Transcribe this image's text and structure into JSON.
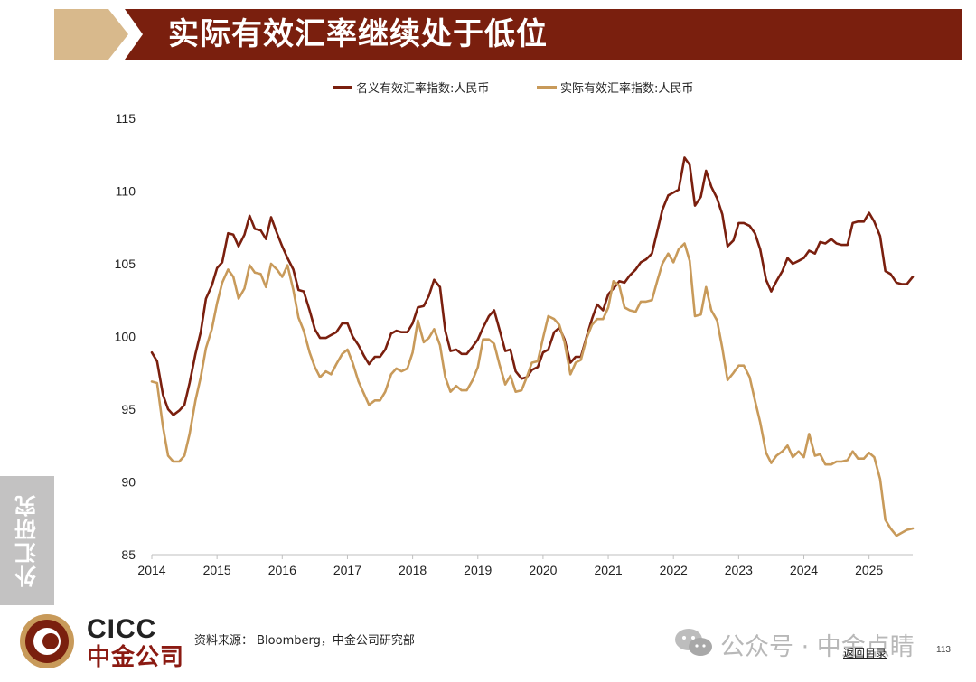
{
  "header": {
    "title": "实际有效汇率继续处于低位"
  },
  "colors": {
    "banner": "#7a1f0e",
    "chevron": "#d8b98c",
    "nominal": "#7a1f0e",
    "real": "#c89a5a"
  },
  "side_tab": {
    "label": "外汇研究"
  },
  "footer": {
    "logo_en": "CICC",
    "logo_cn": "中金公司",
    "source": "资料来源： Bloomberg，中金公司研究部",
    "watermark": "公众号 · 中金点睛",
    "back_link": "返回目录",
    "page_number": "113"
  },
  "chart_data": {
    "type": "line",
    "title": "",
    "xlabel": "",
    "ylabel": "",
    "ylim": [
      85,
      115
    ],
    "xlim": [
      2014.0,
      2025.67
    ],
    "yticks": [
      "85",
      "90",
      "95",
      "100",
      "105",
      "110",
      "115"
    ],
    "xticks": [
      "2014",
      "2015",
      "2016",
      "2017",
      "2018",
      "2019",
      "2020",
      "2021",
      "2022",
      "2023",
      "2024",
      "2025"
    ],
    "legend_position": "top",
    "series": [
      {
        "name": "名义有效汇率指数:人民币",
        "points": [
          [
            2014.0,
            98.9
          ],
          [
            2014.08,
            98.3
          ],
          [
            2014.17,
            96.0
          ],
          [
            2014.25,
            95.0
          ],
          [
            2014.33,
            94.6
          ],
          [
            2014.42,
            94.9
          ],
          [
            2014.5,
            95.3
          ],
          [
            2014.58,
            96.8
          ],
          [
            2014.67,
            98.8
          ],
          [
            2014.75,
            100.3
          ],
          [
            2014.83,
            102.6
          ],
          [
            2014.92,
            103.5
          ],
          [
            2015.0,
            104.7
          ],
          [
            2015.08,
            105.1
          ],
          [
            2015.17,
            107.1
          ],
          [
            2015.25,
            107.0
          ],
          [
            2015.33,
            106.2
          ],
          [
            2015.42,
            107.0
          ],
          [
            2015.5,
            108.3
          ],
          [
            2015.58,
            107.4
          ],
          [
            2015.67,
            107.3
          ],
          [
            2015.75,
            106.7
          ],
          [
            2015.83,
            108.2
          ],
          [
            2015.92,
            107.1
          ],
          [
            2016.0,
            106.2
          ],
          [
            2016.08,
            105.4
          ],
          [
            2016.17,
            104.6
          ],
          [
            2016.25,
            103.2
          ],
          [
            2016.33,
            103.1
          ],
          [
            2016.42,
            101.8
          ],
          [
            2016.5,
            100.5
          ],
          [
            2016.58,
            99.9
          ],
          [
            2016.67,
            99.9
          ],
          [
            2016.75,
            100.1
          ],
          [
            2016.83,
            100.3
          ],
          [
            2016.92,
            100.9
          ],
          [
            2017.0,
            100.9
          ],
          [
            2017.08,
            100.0
          ],
          [
            2017.17,
            99.4
          ],
          [
            2017.25,
            98.7
          ],
          [
            2017.33,
            98.1
          ],
          [
            2017.42,
            98.6
          ],
          [
            2017.5,
            98.6
          ],
          [
            2017.58,
            99.1
          ],
          [
            2017.67,
            100.2
          ],
          [
            2017.75,
            100.4
          ],
          [
            2017.83,
            100.3
          ],
          [
            2017.92,
            100.3
          ],
          [
            2018.0,
            100.9
          ],
          [
            2018.08,
            102.0
          ],
          [
            2018.17,
            102.1
          ],
          [
            2018.25,
            102.8
          ],
          [
            2018.33,
            103.9
          ],
          [
            2018.42,
            103.4
          ],
          [
            2018.5,
            100.4
          ],
          [
            2018.58,
            99.0
          ],
          [
            2018.67,
            99.1
          ],
          [
            2018.75,
            98.8
          ],
          [
            2018.83,
            98.8
          ],
          [
            2018.92,
            99.3
          ],
          [
            2019.0,
            99.8
          ],
          [
            2019.08,
            100.6
          ],
          [
            2019.17,
            101.4
          ],
          [
            2019.25,
            101.8
          ],
          [
            2019.33,
            100.5
          ],
          [
            2019.42,
            99.0
          ],
          [
            2019.5,
            99.1
          ],
          [
            2019.58,
            97.6
          ],
          [
            2019.67,
            97.1
          ],
          [
            2019.75,
            97.2
          ],
          [
            2019.83,
            97.7
          ],
          [
            2019.92,
            97.9
          ],
          [
            2020.0,
            98.9
          ],
          [
            2020.08,
            99.1
          ],
          [
            2020.17,
            100.3
          ],
          [
            2020.25,
            100.6
          ],
          [
            2020.33,
            99.8
          ],
          [
            2020.42,
            98.2
          ],
          [
            2020.5,
            98.6
          ],
          [
            2020.58,
            98.6
          ],
          [
            2020.67,
            100.0
          ],
          [
            2020.75,
            101.2
          ],
          [
            2020.83,
            102.2
          ],
          [
            2020.92,
            101.8
          ],
          [
            2021.0,
            102.9
          ],
          [
            2021.08,
            103.3
          ],
          [
            2021.17,
            103.8
          ],
          [
            2021.25,
            103.7
          ],
          [
            2021.33,
            104.2
          ],
          [
            2021.42,
            104.6
          ],
          [
            2021.5,
            105.1
          ],
          [
            2021.58,
            105.3
          ],
          [
            2021.67,
            105.7
          ],
          [
            2021.75,
            107.2
          ],
          [
            2021.83,
            108.7
          ],
          [
            2021.92,
            109.7
          ],
          [
            2022.0,
            109.9
          ],
          [
            2022.08,
            110.1
          ],
          [
            2022.17,
            112.3
          ],
          [
            2022.25,
            111.8
          ],
          [
            2022.33,
            109.0
          ],
          [
            2022.42,
            109.6
          ],
          [
            2022.5,
            111.4
          ],
          [
            2022.58,
            110.3
          ],
          [
            2022.67,
            109.5
          ],
          [
            2022.75,
            108.4
          ],
          [
            2022.83,
            106.2
          ],
          [
            2022.92,
            106.6
          ],
          [
            2023.0,
            107.8
          ],
          [
            2023.08,
            107.8
          ],
          [
            2023.17,
            107.6
          ],
          [
            2023.25,
            107.1
          ],
          [
            2023.33,
            106.0
          ],
          [
            2023.42,
            103.9
          ],
          [
            2023.5,
            103.1
          ],
          [
            2023.58,
            103.8
          ],
          [
            2023.67,
            104.5
          ],
          [
            2023.75,
            105.4
          ],
          [
            2023.83,
            105.0
          ],
          [
            2023.92,
            105.2
          ],
          [
            2024.0,
            105.4
          ],
          [
            2024.08,
            105.9
          ],
          [
            2024.17,
            105.7
          ],
          [
            2024.25,
            106.5
          ],
          [
            2024.33,
            106.4
          ],
          [
            2024.42,
            106.7
          ],
          [
            2024.5,
            106.4
          ],
          [
            2024.58,
            106.3
          ],
          [
            2024.67,
            106.3
          ],
          [
            2024.75,
            107.8
          ],
          [
            2024.83,
            107.9
          ],
          [
            2024.92,
            107.9
          ],
          [
            2025.0,
            108.5
          ],
          [
            2025.08,
            107.9
          ],
          [
            2025.17,
            106.9
          ],
          [
            2025.25,
            104.5
          ],
          [
            2025.33,
            104.3
          ],
          [
            2025.42,
            103.7
          ],
          [
            2025.5,
            103.6
          ],
          [
            2025.58,
            103.6
          ],
          [
            2025.67,
            104.1
          ]
        ]
      },
      {
        "name": "实际有效汇率指数:人民币",
        "points": [
          [
            2014.0,
            96.9
          ],
          [
            2014.08,
            96.8
          ],
          [
            2014.17,
            93.8
          ],
          [
            2014.25,
            91.8
          ],
          [
            2014.33,
            91.4
          ],
          [
            2014.42,
            91.4
          ],
          [
            2014.5,
            91.8
          ],
          [
            2014.58,
            93.3
          ],
          [
            2014.67,
            95.6
          ],
          [
            2014.75,
            97.2
          ],
          [
            2014.83,
            99.2
          ],
          [
            2014.92,
            100.5
          ],
          [
            2015.0,
            102.3
          ],
          [
            2015.08,
            103.7
          ],
          [
            2015.17,
            104.6
          ],
          [
            2015.25,
            104.1
          ],
          [
            2015.33,
            102.6
          ],
          [
            2015.42,
            103.3
          ],
          [
            2015.5,
            104.9
          ],
          [
            2015.58,
            104.4
          ],
          [
            2015.67,
            104.3
          ],
          [
            2015.75,
            103.4
          ],
          [
            2015.83,
            105.0
          ],
          [
            2015.92,
            104.6
          ],
          [
            2016.0,
            104.1
          ],
          [
            2016.08,
            104.9
          ],
          [
            2016.17,
            103.2
          ],
          [
            2016.25,
            101.3
          ],
          [
            2016.33,
            100.4
          ],
          [
            2016.42,
            98.9
          ],
          [
            2016.5,
            97.9
          ],
          [
            2016.58,
            97.2
          ],
          [
            2016.67,
            97.6
          ],
          [
            2016.75,
            97.4
          ],
          [
            2016.83,
            98.1
          ],
          [
            2016.92,
            98.8
          ],
          [
            2017.0,
            99.1
          ],
          [
            2017.08,
            98.2
          ],
          [
            2017.17,
            96.9
          ],
          [
            2017.25,
            96.1
          ],
          [
            2017.33,
            95.3
          ],
          [
            2017.42,
            95.6
          ],
          [
            2017.5,
            95.6
          ],
          [
            2017.58,
            96.2
          ],
          [
            2017.67,
            97.4
          ],
          [
            2017.75,
            97.8
          ],
          [
            2017.83,
            97.6
          ],
          [
            2017.92,
            97.8
          ],
          [
            2018.0,
            98.9
          ],
          [
            2018.08,
            101.1
          ],
          [
            2018.17,
            99.6
          ],
          [
            2018.25,
            99.9
          ],
          [
            2018.33,
            100.5
          ],
          [
            2018.42,
            99.4
          ],
          [
            2018.5,
            97.2
          ],
          [
            2018.58,
            96.2
          ],
          [
            2018.67,
            96.6
          ],
          [
            2018.75,
            96.3
          ],
          [
            2018.83,
            96.3
          ],
          [
            2018.92,
            97.0
          ],
          [
            2019.0,
            97.9
          ],
          [
            2019.08,
            99.8
          ],
          [
            2019.17,
            99.8
          ],
          [
            2019.25,
            99.5
          ],
          [
            2019.33,
            98.1
          ],
          [
            2019.42,
            96.7
          ],
          [
            2019.5,
            97.3
          ],
          [
            2019.58,
            96.2
          ],
          [
            2019.67,
            96.3
          ],
          [
            2019.75,
            97.2
          ],
          [
            2019.83,
            98.2
          ],
          [
            2019.92,
            98.3
          ],
          [
            2020.0,
            99.9
          ],
          [
            2020.08,
            101.4
          ],
          [
            2020.17,
            101.2
          ],
          [
            2020.25,
            100.8
          ],
          [
            2020.33,
            99.6
          ],
          [
            2020.42,
            97.4
          ],
          [
            2020.5,
            98.2
          ],
          [
            2020.58,
            98.4
          ],
          [
            2020.67,
            99.9
          ],
          [
            2020.75,
            100.8
          ],
          [
            2020.83,
            101.2
          ],
          [
            2020.92,
            101.2
          ],
          [
            2021.0,
            102.0
          ],
          [
            2021.08,
            103.8
          ],
          [
            2021.17,
            103.5
          ],
          [
            2021.25,
            102.0
          ],
          [
            2021.33,
            101.8
          ],
          [
            2021.42,
            101.7
          ],
          [
            2021.5,
            102.4
          ],
          [
            2021.58,
            102.4
          ],
          [
            2021.67,
            102.5
          ],
          [
            2021.75,
            103.8
          ],
          [
            2021.83,
            105.0
          ],
          [
            2021.92,
            105.7
          ],
          [
            2022.0,
            105.1
          ],
          [
            2022.08,
            106.0
          ],
          [
            2022.17,
            106.4
          ],
          [
            2022.25,
            105.2
          ],
          [
            2022.33,
            101.4
          ],
          [
            2022.42,
            101.5
          ],
          [
            2022.5,
            103.4
          ],
          [
            2022.58,
            101.8
          ],
          [
            2022.67,
            101.1
          ],
          [
            2022.75,
            99.2
          ],
          [
            2022.83,
            97.0
          ],
          [
            2022.92,
            97.5
          ],
          [
            2023.0,
            98.0
          ],
          [
            2023.08,
            98.0
          ],
          [
            2023.17,
            97.2
          ],
          [
            2023.25,
            95.6
          ],
          [
            2023.33,
            94.1
          ],
          [
            2023.42,
            92.0
          ],
          [
            2023.5,
            91.3
          ],
          [
            2023.58,
            91.8
          ],
          [
            2023.67,
            92.1
          ],
          [
            2023.75,
            92.5
          ],
          [
            2023.83,
            91.7
          ],
          [
            2023.92,
            92.1
          ],
          [
            2024.0,
            91.7
          ],
          [
            2024.08,
            93.3
          ],
          [
            2024.17,
            91.8
          ],
          [
            2024.25,
            91.9
          ],
          [
            2024.33,
            91.2
          ],
          [
            2024.42,
            91.2
          ],
          [
            2024.5,
            91.4
          ],
          [
            2024.58,
            91.4
          ],
          [
            2024.67,
            91.5
          ],
          [
            2024.75,
            92.1
          ],
          [
            2024.83,
            91.6
          ],
          [
            2024.92,
            91.6
          ],
          [
            2025.0,
            92.0
          ],
          [
            2025.08,
            91.7
          ],
          [
            2025.17,
            90.2
          ],
          [
            2025.25,
            87.4
          ],
          [
            2025.33,
            86.8
          ],
          [
            2025.42,
            86.3
          ],
          [
            2025.5,
            86.5
          ],
          [
            2025.58,
            86.7
          ],
          [
            2025.67,
            86.8
          ]
        ]
      }
    ]
  }
}
